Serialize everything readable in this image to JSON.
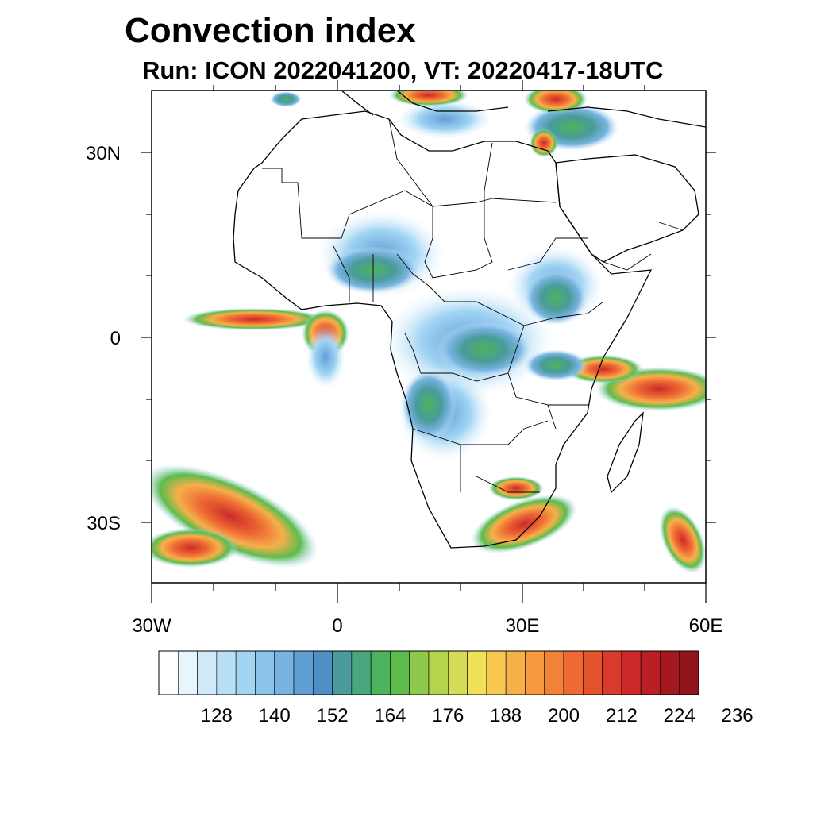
{
  "title": "Convection index",
  "subtitle": "Run: ICON 2022041200,  VT: 20220417-18UTC",
  "latitude_labels": [
    "30N",
    "0",
    "30S"
  ],
  "longitude_labels": [
    "30W",
    "0",
    "30E",
    "60E"
  ],
  "colorbar": {
    "tick_labels": [
      "128",
      "140",
      "152",
      "164",
      "176",
      "188",
      "200",
      "212",
      "224",
      "236"
    ],
    "colors": [
      "#ffffff",
      "#e8f5fd",
      "#cfe9f9",
      "#b8dff6",
      "#a2d5f4",
      "#8cc5ec",
      "#78b4e2",
      "#5f9fd6",
      "#4e8fc4",
      "#4a9b9a",
      "#4aa67c",
      "#4db35e",
      "#5cbc4c",
      "#8dc94a",
      "#b4d44e",
      "#d6dc55",
      "#f0e258",
      "#f8c950",
      "#f6b04a",
      "#f59a40",
      "#f2823a",
      "#ee6a33",
      "#e5522e",
      "#da3a2c",
      "#cc2a2a",
      "#ba1f24",
      "#a6181f",
      "#90141a"
    ],
    "unit_note": ""
  }
}
